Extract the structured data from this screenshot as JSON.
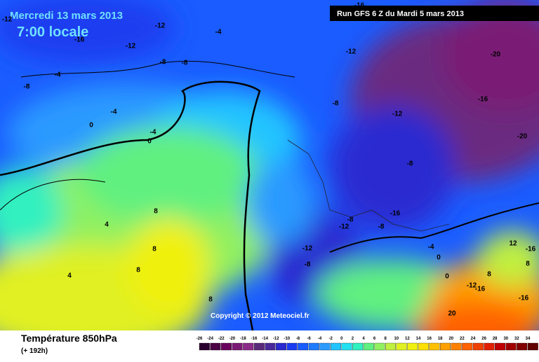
{
  "header": {
    "title": "Mercredi 13 mars 2013",
    "time": "7:00 locale",
    "run": "Run GFS 6 Z du Mardi 5 mars 2013"
  },
  "copyright": "Copyright © 2012 Meteociel.fr",
  "footer": {
    "title": "Température 850hPa",
    "lead": "(+ 192h)"
  },
  "legend": {
    "labels": [
      -26,
      -24,
      -22,
      -20,
      -18,
      -16,
      -14,
      -12,
      -10,
      -8,
      -6,
      -4,
      -2,
      0,
      2,
      4,
      6,
      8,
      10,
      12,
      14,
      16,
      18,
      20,
      22,
      24,
      26,
      28,
      30,
      32,
      34
    ],
    "colors": [
      "#2a0030",
      "#4b0045",
      "#6a005e",
      "#7a1a74",
      "#8c2a88",
      "#5a2a7a",
      "#4a2a9a",
      "#2a2ad0",
      "#1a3cf0",
      "#1a5cff",
      "#1e7cff",
      "#2a9aff",
      "#22c4ff",
      "#22e0f0",
      "#30f0c0",
      "#60f080",
      "#90f060",
      "#c0f040",
      "#e0f020",
      "#f0f010",
      "#ffe000",
      "#ffc000",
      "#ffa000",
      "#ff8000",
      "#ff6000",
      "#f04000",
      "#e02000",
      "#c00000",
      "#a00000",
      "#800000",
      "#600000"
    ]
  },
  "contour_labels": [
    -12,
    -4,
    -16,
    -12,
    -8,
    -8,
    -12,
    -20,
    -4,
    -8,
    -16,
    -4,
    -8,
    -12,
    0,
    -4,
    0,
    -20,
    -8,
    -16,
    -8,
    -12,
    -8,
    -12,
    -8,
    -4,
    0,
    12,
    -16,
    8,
    8,
    4,
    8,
    8,
    4,
    8,
    0,
    -12,
    -16,
    8,
    -16,
    20,
    -16,
    -12
  ]
}
